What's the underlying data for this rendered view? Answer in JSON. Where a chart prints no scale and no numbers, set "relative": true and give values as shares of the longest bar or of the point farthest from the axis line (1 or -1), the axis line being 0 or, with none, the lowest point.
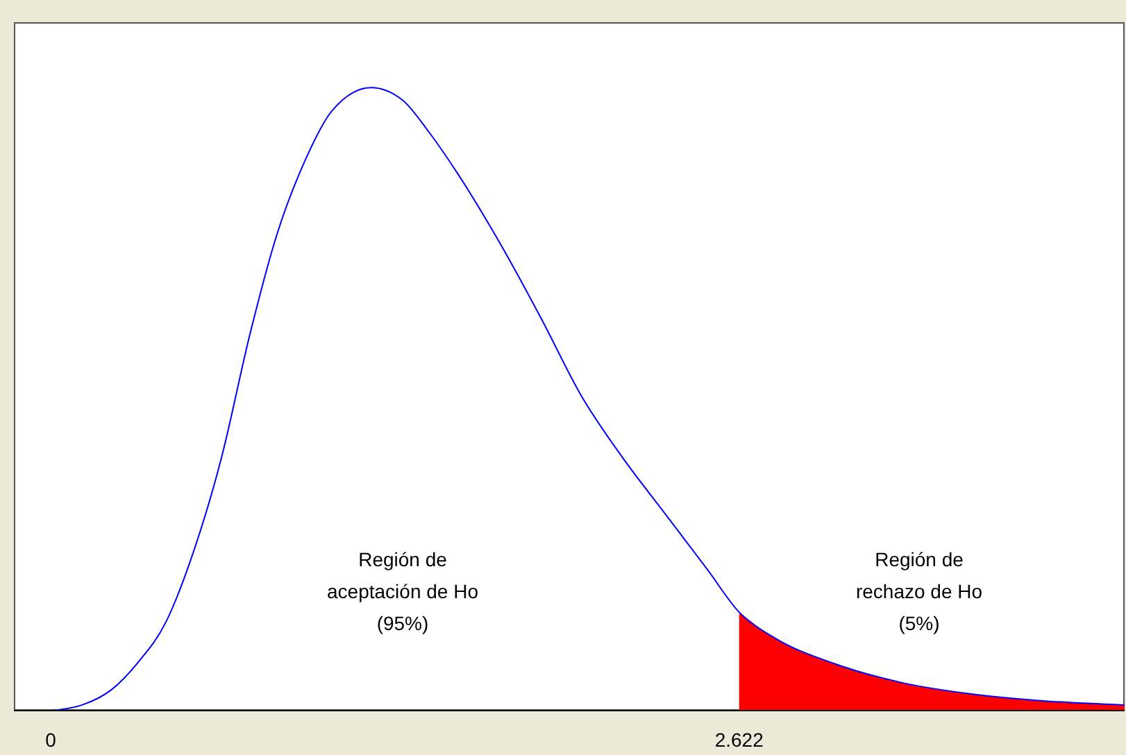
{
  "chart_data": {
    "type": "line",
    "relative": true,
    "xlim": [
      -0.14,
      4.09
    ],
    "xticks": [
      0,
      2.622
    ],
    "tick_labels": "x",
    "marker": "none",
    "line_style": "solid",
    "series": [
      {
        "color": "#0000ff",
        "x": [
          0,
          0.12,
          0.23,
          0.33,
          0.44,
          0.54,
          0.65,
          0.76,
          0.86,
          0.97,
          1.07,
          1.22,
          1.34,
          1.44,
          1.55,
          1.71,
          1.87,
          2.02,
          2.18,
          2.34,
          2.5,
          2.622,
          2.76,
          2.98,
          3.24,
          3.5,
          3.77,
          4.09
        ],
        "values": [
          0,
          0.009,
          0.033,
          0.076,
          0.143,
          0.25,
          0.405,
          0.606,
          0.762,
          0.884,
          0.962,
          1,
          0.98,
          0.929,
          0.862,
          0.751,
          0.628,
          0.506,
          0.405,
          0.316,
          0.227,
          0.158,
          0.116,
          0.076,
          0.045,
          0.027,
          0.016,
          0.009
        ]
      },
      {
        "type": "area",
        "color": "#ff0000",
        "x": [
          2.622,
          2.76,
          2.98,
          3.24,
          3.5,
          3.77,
          4.09
        ],
        "values": [
          0.158,
          0.116,
          0.076,
          0.045,
          0.027,
          0.016,
          0.009
        ]
      }
    ],
    "annotations": [
      "Región de\naceptación de Ho\n(95%)",
      "Región de\nrechazo de Ho\n(5%)"
    ]
  }
}
